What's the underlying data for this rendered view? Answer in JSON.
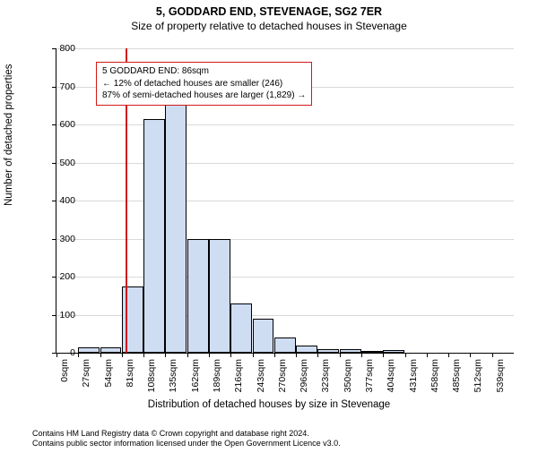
{
  "title_main": "5, GODDARD END, STEVENAGE, SG2 7ER",
  "title_sub": "Size of property relative to detached houses in Stevenage",
  "y_axis_label": "Number of detached properties",
  "x_axis_label": "Distribution of detached houses by size in Stevenage",
  "chart": {
    "type": "histogram",
    "ylim": [
      0,
      800
    ],
    "ytick_step": 100,
    "y_ticks": [
      0,
      100,
      200,
      300,
      400,
      500,
      600,
      700,
      800
    ],
    "x_categories": [
      "0sqm",
      "27sqm",
      "54sqm",
      "81sqm",
      "108sqm",
      "135sqm",
      "162sqm",
      "189sqm",
      "216sqm",
      "243sqm",
      "270sqm",
      "296sqm",
      "323sqm",
      "350sqm",
      "377sqm",
      "404sqm",
      "431sqm",
      "458sqm",
      "485sqm",
      "512sqm",
      "539sqm"
    ],
    "values": [
      0,
      15,
      15,
      175,
      615,
      660,
      300,
      300,
      130,
      90,
      40,
      20,
      10,
      10,
      5,
      8,
      0,
      0,
      0,
      0,
      0
    ],
    "bar_fill": "#cfddf2",
    "bar_border": "#000000",
    "grid_color": "#d9d9d9",
    "background_color": "#ffffff",
    "marker_value": 86,
    "marker_color": "#d11919"
  },
  "annotation": {
    "line1": "5 GODDARD END: 86sqm",
    "line2": "← 12% of detached houses are smaller (246)",
    "line3": "87% of semi-detached houses are larger (1,829) →",
    "border_color": "#d11919",
    "text_color": "#000000"
  },
  "footer": {
    "line1": "Contains HM Land Registry data © Crown copyright and database right 2024.",
    "line2": "Contains public sector information licensed under the Open Government Licence v3.0."
  }
}
